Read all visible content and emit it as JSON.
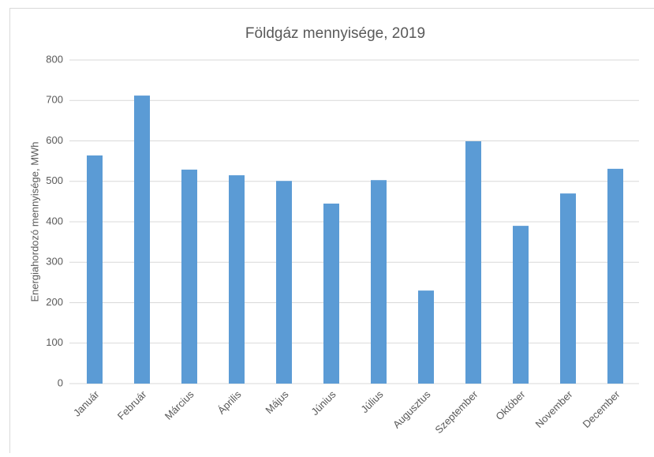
{
  "chart_data": {
    "type": "bar",
    "title": "Földgáz mennyisége, 2019",
    "y_label": "Energiahordozó mennyisége, MWh",
    "categories": [
      "Január",
      "Február",
      "Március",
      "Április",
      "Május",
      "Június",
      "Július",
      "Augusztus",
      "Szeptember",
      "Október",
      "November",
      "December"
    ],
    "values": [
      564,
      712,
      529,
      515,
      501,
      445,
      503,
      230,
      599,
      390,
      470,
      531
    ],
    "color": "#5b9bd5",
    "ylim": [
      0,
      800
    ],
    "yticks": [
      0,
      100,
      200,
      300,
      400,
      500,
      600,
      700,
      800
    ],
    "grid": true
  }
}
